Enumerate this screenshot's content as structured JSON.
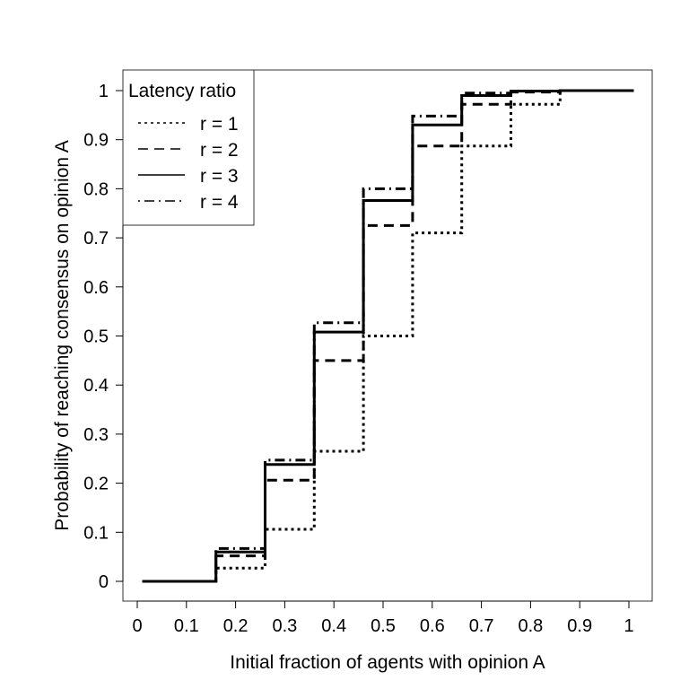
{
  "chart_data": {
    "type": "line",
    "title": "",
    "xlabel": "Initial fraction of agents with opinion A",
    "ylabel": "Probability of reaching consensus on opinion A",
    "xlim": [
      0,
      1
    ],
    "ylim": [
      0,
      1
    ],
    "x_ticks": [
      "0",
      "0.1",
      "0.2",
      "0.3",
      "0.4",
      "0.5",
      "0.6",
      "0.7",
      "0.8",
      "0.9",
      "1"
    ],
    "y_ticks": [
      "0",
      "0.1",
      "0.2",
      "0.3",
      "0.4",
      "0.5",
      "0.6",
      "0.7",
      "0.8",
      "0.9",
      "1"
    ],
    "grid": false,
    "step": true,
    "legend": {
      "title": "Latency ratio",
      "placement": "top-left",
      "entries": [
        "r = 1",
        "r = 2",
        "r = 3",
        "r = 4"
      ]
    },
    "series": [
      {
        "name": "r = 1",
        "dash": "dotted",
        "x": [
          0.01,
          0.16,
          0.26,
          0.36,
          0.46,
          0.56,
          0.66,
          0.76,
          0.86,
          1.01
        ],
        "y": [
          0.0,
          0.027,
          0.106,
          0.265,
          0.5,
          0.71,
          0.887,
          0.972,
          1.0,
          1.0
        ]
      },
      {
        "name": "r = 2",
        "dash": "dashed",
        "x": [
          0.01,
          0.16,
          0.26,
          0.36,
          0.46,
          0.56,
          0.66,
          0.76,
          0.86,
          1.01
        ],
        "y": [
          0.0,
          0.052,
          0.206,
          0.45,
          0.725,
          0.887,
          0.972,
          0.997,
          1.0,
          1.0
        ]
      },
      {
        "name": "r = 3",
        "dash": "solid",
        "x": [
          0.01,
          0.16,
          0.26,
          0.36,
          0.46,
          0.56,
          0.66,
          0.76,
          0.86,
          1.01
        ],
        "y": [
          0.0,
          0.06,
          0.238,
          0.508,
          0.776,
          0.93,
          0.99,
          0.999,
          1.0,
          1.0
        ]
      },
      {
        "name": "r = 4",
        "dash": "dotdash",
        "x": [
          0.01,
          0.16,
          0.26,
          0.36,
          0.46,
          0.56,
          0.66,
          0.76,
          0.86,
          1.01
        ],
        "y": [
          0.0,
          0.067,
          0.247,
          0.527,
          0.8,
          0.948,
          0.995,
          0.999,
          1.0,
          1.0
        ]
      }
    ]
  }
}
